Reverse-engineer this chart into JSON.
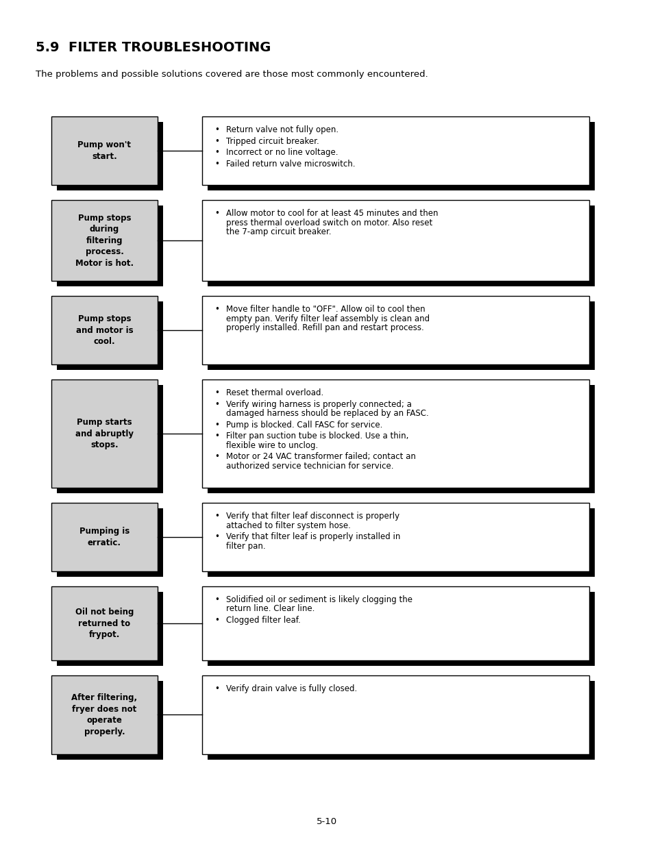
{
  "title": "5.9  FILTER TROUBLESHOOTING",
  "subtitle": "The problems and possible solutions covered are those most commonly encountered.",
  "background_color": "#ffffff",
  "page_number": "5-10",
  "rows": [
    {
      "left_text": "Pump won't\nstart.",
      "right_bullets": [
        "Return valve not fully open.",
        "Tripped circuit breaker.",
        "Incorrect or no line voltage.",
        "Failed return valve microswitch."
      ]
    },
    {
      "left_text": "Pump stops\nduring\nfiltering\nprocess.\nMotor is hot.",
      "right_bullets": [
        "Allow motor to cool for at least 45 minutes and then press thermal overload switch on motor.  Also reset the 7-amp circuit breaker."
      ]
    },
    {
      "left_text": "Pump stops\nand motor is\ncool.",
      "right_bullets": [
        "Move filter handle to \"OFF\". Allow oil to cool then empty pan. Verify filter leaf assembly is clean and properly installed. Refill pan and restart process."
      ]
    },
    {
      "left_text": "Pump starts\nand abruptly\nstops.",
      "right_bullets": [
        "Reset thermal overload.",
        "Verify  wiring harness is properly connected; a damaged harness should be replaced by an FASC.",
        "Pump is blocked. Call FASC for service.",
        "Filter pan suction tube is blocked. Use a thin, flexible wire to unclog.",
        "Motor or 24 VAC transformer failed; contact an authorized service technician for service."
      ]
    },
    {
      "left_text": "Pumping is\nerratic.",
      "right_bullets": [
        "Verify that filter leaf disconnect is properly attached to filter system hose.",
        "Verify that filter leaf is properly installed in filter pan."
      ]
    },
    {
      "left_text": "Oil not being\nreturned to\nfrypot.",
      "right_bullets": [
        "Solidified oil or sediment is likely clogging the return line. Clear line.",
        "Clogged filter leaf."
      ]
    },
    {
      "left_text": "After filtering,\nfryer does not\noperate\nproperly.",
      "right_bullets": [
        "Verify drain valve is fully closed."
      ]
    }
  ],
  "left_box_color": "#d0d0d0",
  "right_box_color": "#ffffff",
  "shadow_color": "#000000",
  "text_color": "#000000",
  "title_fontsize": 14,
  "subtitle_fontsize": 9.5,
  "body_fontsize": 8.5
}
